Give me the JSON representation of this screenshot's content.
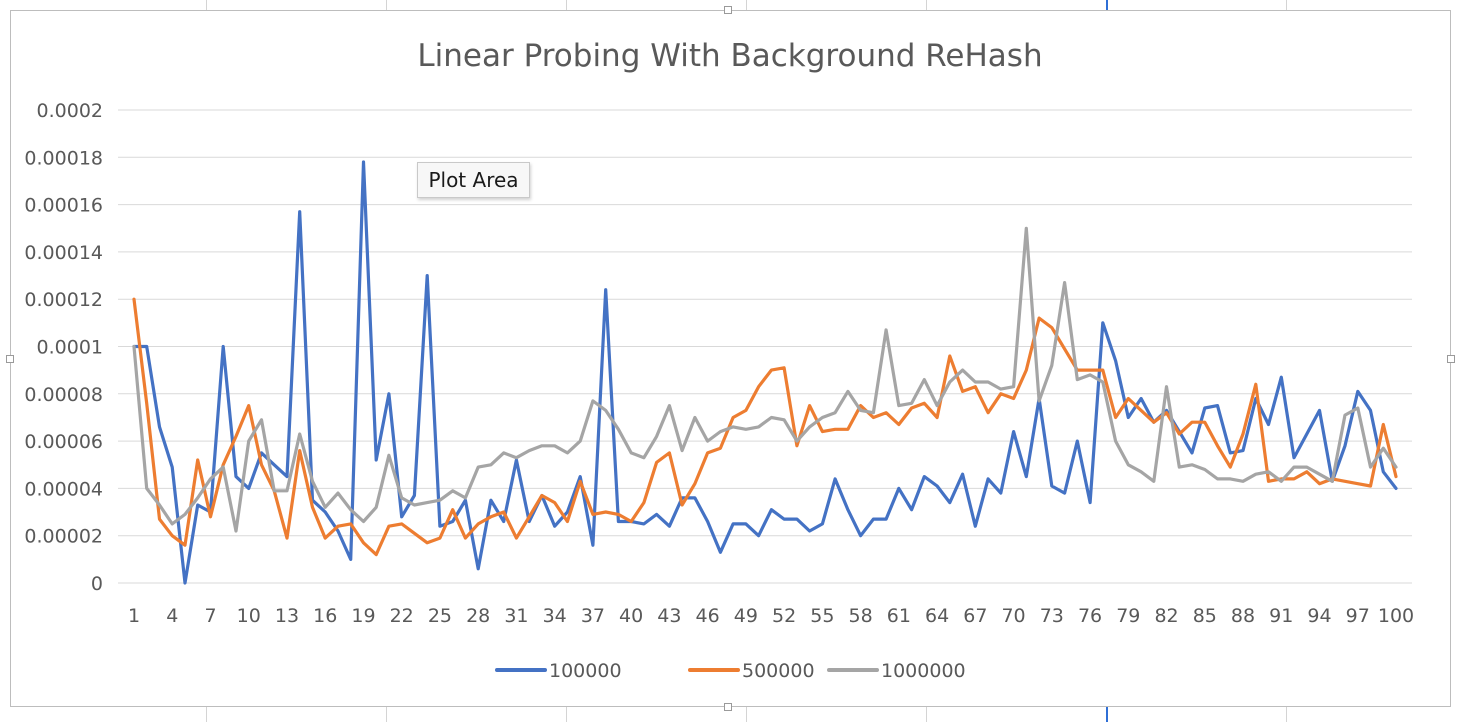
{
  "chart_data": {
    "type": "line",
    "title": "Linear Probing With Background ReHash",
    "xlabel": "",
    "ylabel": "",
    "ylim": [
      0,
      0.0002
    ],
    "y_ticks": [
      "0",
      "0.00002",
      "0.00004",
      "0.00006",
      "0.00008",
      "0.0001",
      "0.00012",
      "0.00014",
      "0.00016",
      "0.00018",
      "0.0002"
    ],
    "x_ticks": [
      "1",
      "4",
      "7",
      "10",
      "13",
      "16",
      "19",
      "22",
      "25",
      "28",
      "31",
      "34",
      "37",
      "40",
      "43",
      "46",
      "49",
      "52",
      "55",
      "58",
      "61",
      "64",
      "67",
      "70",
      "73",
      "76",
      "79",
      "82",
      "85",
      "88",
      "91",
      "94",
      "97",
      "100"
    ],
    "grid": true,
    "legend_position": "bottom",
    "x": [
      1,
      2,
      3,
      4,
      5,
      6,
      7,
      8,
      9,
      10,
      11,
      12,
      13,
      14,
      15,
      16,
      17,
      18,
      19,
      20,
      21,
      22,
      23,
      24,
      25,
      26,
      27,
      28,
      29,
      30,
      31,
      32,
      33,
      34,
      35,
      36,
      37,
      38,
      39,
      40,
      41,
      42,
      43,
      44,
      45,
      46,
      47,
      48,
      49,
      50,
      51,
      52,
      53,
      54,
      55,
      56,
      57,
      58,
      59,
      60,
      61,
      62,
      63,
      64,
      65,
      66,
      67,
      68,
      69,
      70,
      71,
      72,
      73,
      74,
      75,
      76,
      77,
      78,
      79,
      80,
      81,
      82,
      83,
      84,
      85,
      86,
      87,
      88,
      89,
      90,
      91,
      92,
      93,
      94,
      95,
      96,
      97,
      98,
      99,
      100
    ],
    "series": [
      {
        "name": "100000",
        "color": "#4472c4",
        "values": [
          0.0001,
          0.0001,
          6.6e-05,
          4.9e-05,
          0.0,
          3.3e-05,
          3e-05,
          0.0001,
          4.5e-05,
          4e-05,
          5.5e-05,
          5e-05,
          4.5e-05,
          0.000157,
          3.5e-05,
          3e-05,
          2.2e-05,
          1e-05,
          0.000178,
          5.2e-05,
          8e-05,
          2.8e-05,
          3.7e-05,
          0.00013,
          2.4e-05,
          2.6e-05,
          3.5e-05,
          6e-06,
          3.5e-05,
          2.6e-05,
          5.2e-05,
          2.6e-05,
          3.7e-05,
          2.4e-05,
          3e-05,
          4.5e-05,
          1.6e-05,
          0.000124,
          2.6e-05,
          2.6e-05,
          2.5e-05,
          2.9e-05,
          2.4e-05,
          3.6e-05,
          3.6e-05,
          2.6e-05,
          1.3e-05,
          2.5e-05,
          2.5e-05,
          2e-05,
          3.1e-05,
          2.7e-05,
          2.7e-05,
          2.2e-05,
          2.5e-05,
          4.4e-05,
          3.1e-05,
          2e-05,
          2.7e-05,
          2.7e-05,
          4e-05,
          3.1e-05,
          4.5e-05,
          4.1e-05,
          3.4e-05,
          4.6e-05,
          2.4e-05,
          4.4e-05,
          3.8e-05,
          6.4e-05,
          4.5e-05,
          7.8e-05,
          4.1e-05,
          3.8e-05,
          6e-05,
          3.4e-05,
          0.00011,
          9.4e-05,
          7e-05,
          7.8e-05,
          6.8e-05,
          7.3e-05,
          6.4e-05,
          5.5e-05,
          7.4e-05,
          7.5e-05,
          5.5e-05,
          5.6e-05,
          7.8e-05,
          6.7e-05,
          8.7e-05,
          5.3e-05,
          6.3e-05,
          7.3e-05,
          4.3e-05,
          5.8e-05,
          8.1e-05,
          7.3e-05,
          4.7e-05,
          4e-05
        ]
      },
      {
        "name": "500000",
        "color": "#ed7d31",
        "values": [
          0.00012,
          7.6e-05,
          2.7e-05,
          2e-05,
          1.6e-05,
          5.2e-05,
          2.8e-05,
          5e-05,
          6.2e-05,
          7.5e-05,
          5e-05,
          3.9e-05,
          1.9e-05,
          5.6e-05,
          3.2e-05,
          1.9e-05,
          2.4e-05,
          2.5e-05,
          1.7e-05,
          1.2e-05,
          2.4e-05,
          2.5e-05,
          2.1e-05,
          1.7e-05,
          1.9e-05,
          3.1e-05,
          1.9e-05,
          2.5e-05,
          2.8e-05,
          3e-05,
          1.9e-05,
          2.8e-05,
          3.7e-05,
          3.4e-05,
          2.6e-05,
          4.3e-05,
          2.9e-05,
          3e-05,
          2.9e-05,
          2.6e-05,
          3.4e-05,
          5.1e-05,
          5.5e-05,
          3.3e-05,
          4.2e-05,
          5.5e-05,
          5.7e-05,
          7e-05,
          7.3e-05,
          8.3e-05,
          9e-05,
          9.1e-05,
          5.8e-05,
          7.5e-05,
          6.4e-05,
          6.5e-05,
          6.5e-05,
          7.5e-05,
          7e-05,
          7.2e-05,
          6.7e-05,
          7.4e-05,
          7.6e-05,
          7e-05,
          9.6e-05,
          8.1e-05,
          8.3e-05,
          7.2e-05,
          8e-05,
          7.8e-05,
          9e-05,
          0.000112,
          0.000108,
          9.9e-05,
          9e-05,
          9e-05,
          9e-05,
          7e-05,
          7.8e-05,
          7.3e-05,
          6.8e-05,
          7.2e-05,
          6.3e-05,
          6.8e-05,
          6.8e-05,
          5.8e-05,
          4.9e-05,
          6.3e-05,
          8.4e-05,
          4.3e-05,
          4.4e-05,
          4.4e-05,
          4.7e-05,
          4.2e-05,
          4.4e-05,
          4.3e-05,
          4.2e-05,
          4.1e-05,
          6.7e-05,
          4.5e-05
        ]
      },
      {
        "name": "1000000",
        "color": "#a5a5a5",
        "values": [
          0.0001,
          4e-05,
          3.3e-05,
          2.5e-05,
          2.9e-05,
          3.6e-05,
          4.4e-05,
          4.9e-05,
          2.2e-05,
          6e-05,
          6.9e-05,
          3.9e-05,
          3.9e-05,
          6.3e-05,
          4.3e-05,
          3.2e-05,
          3.8e-05,
          3.1e-05,
          2.6e-05,
          3.2e-05,
          5.4e-05,
          3.6e-05,
          3.3e-05,
          3.4e-05,
          3.5e-05,
          3.9e-05,
          3.6e-05,
          4.9e-05,
          5e-05,
          5.5e-05,
          5.3e-05,
          5.6e-05,
          5.8e-05,
          5.8e-05,
          5.5e-05,
          6e-05,
          7.7e-05,
          7.3e-05,
          6.5e-05,
          5.5e-05,
          5.3e-05,
          6.2e-05,
          7.5e-05,
          5.6e-05,
          7e-05,
          6e-05,
          6.4e-05,
          6.6e-05,
          6.5e-05,
          6.6e-05,
          7e-05,
          6.9e-05,
          6e-05,
          6.6e-05,
          7e-05,
          7.2e-05,
          8.1e-05,
          7.3e-05,
          7.2e-05,
          0.000107,
          7.5e-05,
          7.6e-05,
          8.6e-05,
          7.5e-05,
          8.5e-05,
          9e-05,
          8.5e-05,
          8.5e-05,
          8.2e-05,
          8.3e-05,
          0.00015,
          7.7e-05,
          9.2e-05,
          0.000127,
          8.6e-05,
          8.8e-05,
          8.5e-05,
          6e-05,
          5e-05,
          4.7e-05,
          4.3e-05,
          8.3e-05,
          4.9e-05,
          5e-05,
          4.8e-05,
          4.4e-05,
          4.4e-05,
          4.3e-05,
          4.6e-05,
          4.7e-05,
          4.3e-05,
          4.9e-05,
          4.9e-05,
          4.6e-05,
          4.3e-05,
          7.1e-05,
          7.4e-05,
          4.9e-05,
          5.7e-05,
          4.9e-05
        ]
      }
    ]
  },
  "tooltip": {
    "label": "Plot Area"
  }
}
